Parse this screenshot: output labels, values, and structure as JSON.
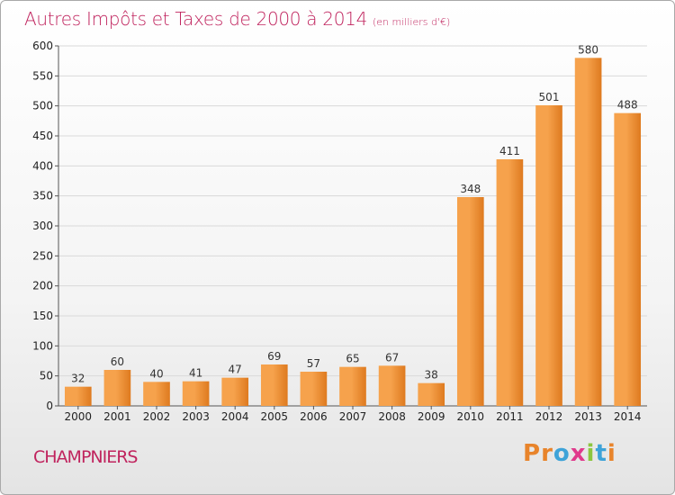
{
  "title": "Autres Impôts et Taxes de 2000 à 2014",
  "title_unit": "(en milliers d'€)",
  "commune": "CHAMPNIERS",
  "logo": {
    "text": "Proxiti",
    "letters": [
      "P",
      "r",
      "o",
      "x",
      "i",
      "t",
      "i"
    ],
    "colors": [
      "#e8842b",
      "#e8842b",
      "#3ea3d8",
      "#e03a8c",
      "#8cc63f",
      "#3ea3d8",
      "#e8842b"
    ]
  },
  "colors": {
    "accent": "#c0245e",
    "bar_light": "#f6a24c",
    "bar_dark": "#de7a1f",
    "grid": "#d9d9d9"
  },
  "chart_data": {
    "type": "bar",
    "categories": [
      "2000",
      "2001",
      "2002",
      "2003",
      "2004",
      "2005",
      "2006",
      "2007",
      "2008",
      "2009",
      "2010",
      "2011",
      "2012",
      "2013",
      "2014"
    ],
    "values": [
      32,
      60,
      40,
      41,
      47,
      69,
      57,
      65,
      67,
      38,
      348,
      411,
      501,
      580,
      488
    ],
    "ylim": [
      0,
      600
    ],
    "yticks": [
      0,
      50,
      100,
      150,
      200,
      250,
      300,
      350,
      400,
      450,
      500,
      550,
      600
    ],
    "grid": true,
    "legend": "none"
  }
}
